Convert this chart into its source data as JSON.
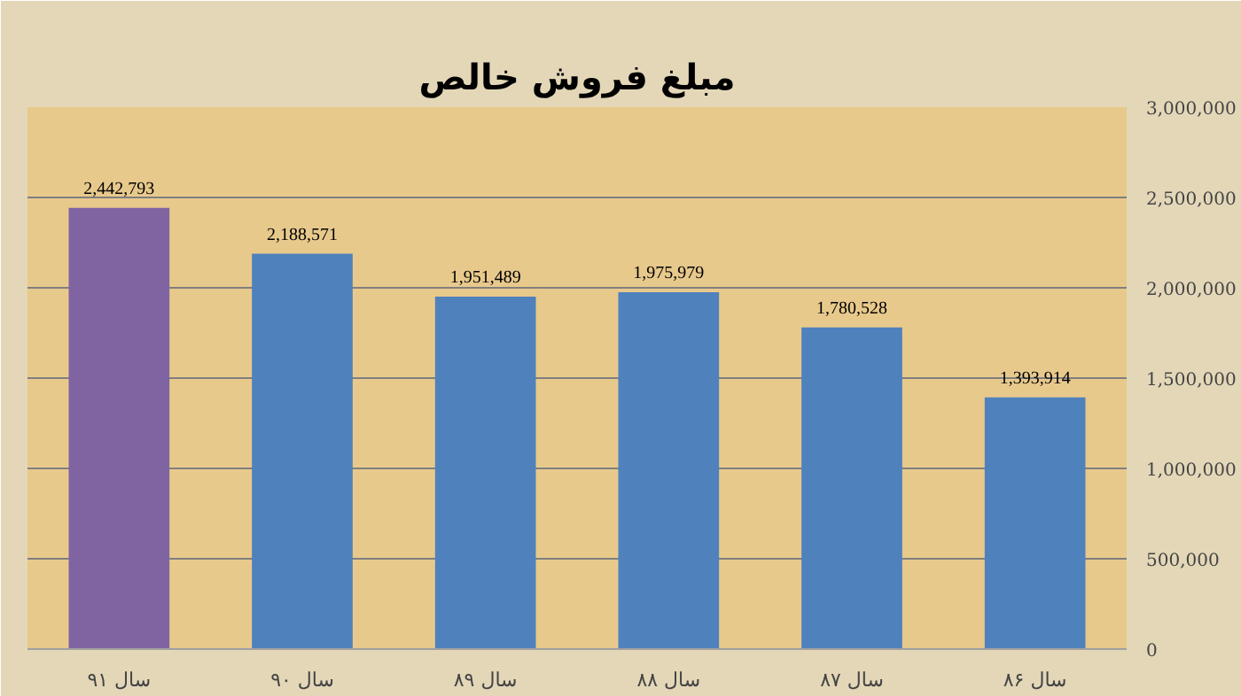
{
  "chart_data": {
    "type": "bar",
    "title": "مبلغ فروش خالص",
    "categories": [
      "سال ۹۱",
      "سال ۹۰",
      "سال ۸۹",
      "سال ۸۸",
      "سال ۸۷",
      "سال ۸۶"
    ],
    "values": [
      2442793,
      2188571,
      1951489,
      1975979,
      1780528,
      1393914
    ],
    "colors": [
      "#8064a2",
      "#4f81bd",
      "#4f81bd",
      "#4f81bd",
      "#4f81bd",
      "#4f81bd"
    ],
    "ylim": [
      0,
      3000000
    ],
    "yticks": [
      0,
      {
        "value": 500000,
        "label": "500,000"
      },
      {
        "value": 1000000,
        "label": "1,000,000"
      },
      {
        "value": 1500000,
        "label": "1,500,000"
      },
      {
        "value": 2000000,
        "label": "2,000,000"
      },
      {
        "value": 2500000,
        "label": "2,500,000"
      },
      {
        "value": 3000000,
        "label": "3,000,000"
      }
    ],
    "value_labels": [
      "2,442,793",
      "2,188,571",
      "1,951,489",
      "1,975,979",
      "1,780,528",
      "1,393,914"
    ],
    "grid": "y"
  }
}
